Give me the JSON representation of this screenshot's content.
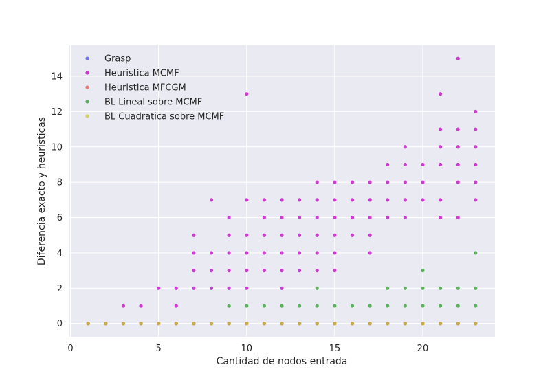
{
  "chart_data": {
    "type": "scatter",
    "title": "",
    "xlabel": "Cantidad de nodos entrada",
    "ylabel": "Diferencia exacto y heuristicas",
    "xlim": [
      -0.1,
      24.1
    ],
    "ylim": [
      -0.75,
      15.75
    ],
    "xticks": [
      0,
      5,
      10,
      15,
      20
    ],
    "yticks": [
      0,
      2,
      4,
      6,
      8,
      10,
      12,
      14
    ],
    "grid": true,
    "background": "#eaeaf2",
    "legend_position": "upper-left",
    "series": [
      {
        "name": "Grasp",
        "color": "#4c4cf0",
        "points": [
          [
            1,
            0
          ],
          [
            2,
            0
          ],
          [
            3,
            0
          ],
          [
            4,
            0
          ],
          [
            5,
            0
          ],
          [
            6,
            0
          ],
          [
            7,
            0
          ],
          [
            8,
            0
          ],
          [
            9,
            0
          ],
          [
            10,
            0
          ],
          [
            11,
            0
          ],
          [
            12,
            0
          ],
          [
            13,
            0
          ],
          [
            14,
            0
          ],
          [
            15,
            0
          ],
          [
            16,
            0
          ],
          [
            17,
            0
          ],
          [
            18,
            0
          ],
          [
            19,
            0
          ],
          [
            20,
            0
          ],
          [
            21,
            0
          ],
          [
            22,
            0
          ],
          [
            23,
            0
          ]
        ]
      },
      {
        "name": "Heuristica MCMF",
        "color": "#bf00bf",
        "points": [
          [
            3,
            1
          ],
          [
            4,
            1
          ],
          [
            5,
            2
          ],
          [
            6,
            1
          ],
          [
            6,
            2
          ],
          [
            7,
            2
          ],
          [
            7,
            3
          ],
          [
            7,
            4
          ],
          [
            7,
            5
          ],
          [
            8,
            2
          ],
          [
            8,
            3
          ],
          [
            8,
            4
          ],
          [
            8,
            7
          ],
          [
            9,
            2
          ],
          [
            9,
            3
          ],
          [
            9,
            4
          ],
          [
            9,
            5
          ],
          [
            9,
            6
          ],
          [
            10,
            2
          ],
          [
            10,
            3
          ],
          [
            10,
            4
          ],
          [
            10,
            5
          ],
          [
            10,
            7
          ],
          [
            10,
            13
          ],
          [
            11,
            3
          ],
          [
            11,
            4
          ],
          [
            11,
            5
          ],
          [
            11,
            6
          ],
          [
            11,
            7
          ],
          [
            12,
            2
          ],
          [
            12,
            3
          ],
          [
            12,
            4
          ],
          [
            12,
            5
          ],
          [
            12,
            6
          ],
          [
            12,
            7
          ],
          [
            13,
            3
          ],
          [
            13,
            4
          ],
          [
            13,
            5
          ],
          [
            13,
            6
          ],
          [
            13,
            7
          ],
          [
            14,
            3
          ],
          [
            14,
            4
          ],
          [
            14,
            5
          ],
          [
            14,
            6
          ],
          [
            14,
            7
          ],
          [
            14,
            8
          ],
          [
            15,
            3
          ],
          [
            15,
            4
          ],
          [
            15,
            5
          ],
          [
            15,
            6
          ],
          [
            15,
            7
          ],
          [
            15,
            8
          ],
          [
            16,
            5
          ],
          [
            16,
            6
          ],
          [
            16,
            7
          ],
          [
            16,
            8
          ],
          [
            17,
            4
          ],
          [
            17,
            5
          ],
          [
            17,
            6
          ],
          [
            17,
            7
          ],
          [
            17,
            8
          ],
          [
            18,
            6
          ],
          [
            18,
            7
          ],
          [
            18,
            8
          ],
          [
            18,
            9
          ],
          [
            19,
            6
          ],
          [
            19,
            7
          ],
          [
            19,
            8
          ],
          [
            19,
            9
          ],
          [
            19,
            10
          ],
          [
            20,
            7
          ],
          [
            20,
            8
          ],
          [
            20,
            9
          ],
          [
            21,
            6
          ],
          [
            21,
            7
          ],
          [
            21,
            9
          ],
          [
            21,
            10
          ],
          [
            21,
            11
          ],
          [
            21,
            13
          ],
          [
            22,
            6
          ],
          [
            22,
            8
          ],
          [
            22,
            9
          ],
          [
            22,
            10
          ],
          [
            22,
            11
          ],
          [
            22,
            15
          ],
          [
            23,
            7
          ],
          [
            23,
            8
          ],
          [
            23,
            9
          ],
          [
            23,
            10
          ],
          [
            23,
            11
          ],
          [
            23,
            12
          ]
        ]
      },
      {
        "name": "Heuristica MFCGM",
        "color": "#e8504a",
        "points": [
          [
            1,
            0
          ],
          [
            2,
            0
          ],
          [
            3,
            0
          ],
          [
            4,
            0
          ],
          [
            5,
            0
          ],
          [
            6,
            0
          ],
          [
            7,
            0
          ],
          [
            8,
            0
          ],
          [
            9,
            0
          ],
          [
            10,
            0
          ],
          [
            11,
            0
          ],
          [
            12,
            0
          ],
          [
            13,
            0
          ],
          [
            14,
            0
          ],
          [
            15,
            0
          ],
          [
            16,
            0
          ],
          [
            17,
            0
          ],
          [
            18,
            0
          ],
          [
            19,
            0
          ],
          [
            20,
            0
          ],
          [
            21,
            0
          ],
          [
            22,
            0
          ],
          [
            23,
            0
          ]
        ]
      },
      {
        "name": "BL Lineal sobre MCMF",
        "color": "#2e9a2e",
        "points": [
          [
            9,
            1
          ],
          [
            10,
            1
          ],
          [
            11,
            1
          ],
          [
            12,
            1
          ],
          [
            13,
            1
          ],
          [
            14,
            1
          ],
          [
            14,
            2
          ],
          [
            15,
            1
          ],
          [
            16,
            1
          ],
          [
            17,
            1
          ],
          [
            18,
            1
          ],
          [
            18,
            2
          ],
          [
            19,
            1
          ],
          [
            19,
            2
          ],
          [
            20,
            1
          ],
          [
            20,
            2
          ],
          [
            20,
            3
          ],
          [
            21,
            1
          ],
          [
            21,
            2
          ],
          [
            22,
            1
          ],
          [
            22,
            2
          ],
          [
            23,
            1
          ],
          [
            23,
            2
          ],
          [
            23,
            4
          ]
        ]
      },
      {
        "name": "BL Cuadratica sobre MCMF",
        "color": "#c8c832",
        "points": [
          [
            1,
            0
          ],
          [
            2,
            0
          ],
          [
            3,
            0
          ],
          [
            4,
            0
          ],
          [
            5,
            0
          ],
          [
            6,
            0
          ],
          [
            7,
            0
          ],
          [
            8,
            0
          ],
          [
            9,
            0
          ],
          [
            10,
            0
          ],
          [
            11,
            0
          ],
          [
            12,
            0
          ],
          [
            13,
            0
          ],
          [
            14,
            0
          ],
          [
            15,
            0
          ],
          [
            16,
            0
          ],
          [
            17,
            0
          ],
          [
            18,
            0
          ],
          [
            19,
            0
          ],
          [
            20,
            0
          ],
          [
            21,
            0
          ],
          [
            22,
            0
          ],
          [
            23,
            0
          ]
        ]
      }
    ]
  }
}
